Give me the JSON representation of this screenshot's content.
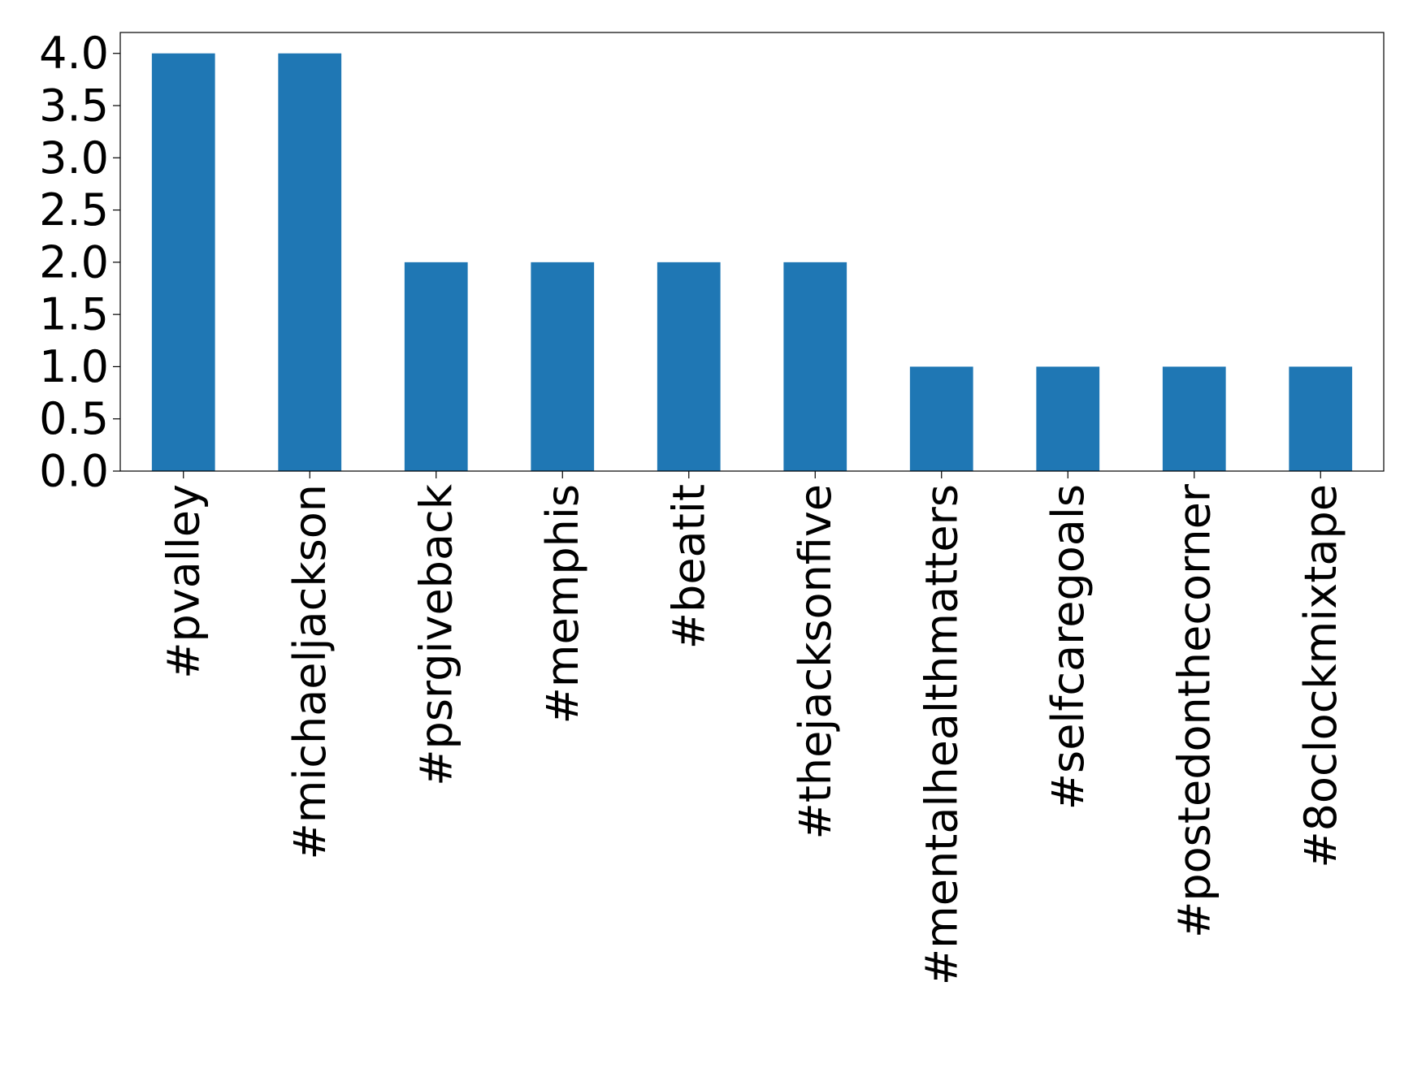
{
  "chart_data": {
    "type": "bar",
    "title": "",
    "xlabel": "",
    "ylabel": "",
    "categories": [
      "#pvalley",
      "#michaeljackson",
      "#psrgiveback",
      "#memphis",
      "#beatit",
      "#thejacksonfive",
      "#mentalhealthmatters",
      "#selfcaregoals",
      "#postedonthecorner",
      "#8oclockmixtape"
    ],
    "values": [
      4,
      4,
      2,
      2,
      2,
      2,
      1,
      1,
      1,
      1
    ],
    "ylim": [
      0,
      4.2
    ],
    "yticks": [
      "0.0",
      "0.5",
      "1.0",
      "1.5",
      "2.0",
      "2.5",
      "3.0",
      "3.5",
      "4.0"
    ],
    "bar_color": "#1f77b4",
    "grid": false,
    "legend": "none"
  }
}
